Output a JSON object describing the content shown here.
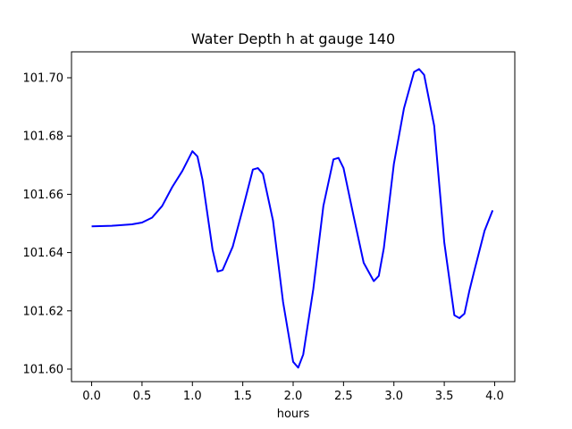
{
  "chart_data": {
    "type": "line",
    "title": "Water Depth h at gauge 140",
    "xlabel": "hours",
    "ylabel": "",
    "xlim": [
      -0.2,
      4.2
    ],
    "ylim": [
      101.5957,
      101.7089
    ],
    "xticks": [
      {
        "value": 0.0,
        "label": "0.0"
      },
      {
        "value": 0.5,
        "label": "0.5"
      },
      {
        "value": 1.0,
        "label": "1.0"
      },
      {
        "value": 1.5,
        "label": "1.5"
      },
      {
        "value": 2.0,
        "label": "2.0"
      },
      {
        "value": 2.5,
        "label": "2.5"
      },
      {
        "value": 3.0,
        "label": "3.0"
      },
      {
        "value": 3.5,
        "label": "3.5"
      },
      {
        "value": 4.0,
        "label": "4.0"
      }
    ],
    "yticks": [
      {
        "value": 101.6,
        "label": "101.60"
      },
      {
        "value": 101.62,
        "label": "101.62"
      },
      {
        "value": 101.64,
        "label": "101.64"
      },
      {
        "value": 101.66,
        "label": "101.66"
      },
      {
        "value": 101.68,
        "label": "101.68"
      },
      {
        "value": 101.7,
        "label": "101.70"
      }
    ],
    "grid": false,
    "series": [
      {
        "color": "#0000ff",
        "x": [
          0.0,
          0.2,
          0.4,
          0.5,
          0.6,
          0.7,
          0.8,
          0.9,
          1.0,
          1.05,
          1.1,
          1.2,
          1.25,
          1.3,
          1.4,
          1.5,
          1.6,
          1.65,
          1.7,
          1.8,
          1.9,
          2.0,
          2.05,
          2.1,
          2.2,
          2.3,
          2.4,
          2.45,
          2.5,
          2.6,
          2.7,
          2.8,
          2.85,
          2.9,
          3.0,
          3.1,
          3.2,
          3.25,
          3.3,
          3.4,
          3.5,
          3.6,
          3.65,
          3.7,
          3.75,
          3.8,
          3.9,
          3.98
        ],
        "y": [
          101.649,
          101.6492,
          101.6497,
          101.6503,
          101.652,
          101.656,
          101.6625,
          101.668,
          101.6748,
          101.673,
          101.665,
          101.641,
          101.6335,
          101.634,
          101.642,
          101.655,
          101.6685,
          101.669,
          101.667,
          101.651,
          101.623,
          101.6025,
          101.6005,
          101.605,
          101.6275,
          101.656,
          101.672,
          101.6725,
          101.669,
          101.6525,
          101.6365,
          101.6302,
          101.632,
          101.6415,
          101.6705,
          101.6895,
          101.702,
          101.703,
          101.701,
          101.6835,
          101.6435,
          101.6185,
          101.6175,
          101.619,
          101.627,
          101.634,
          101.6475,
          101.6545
        ]
      }
    ]
  }
}
